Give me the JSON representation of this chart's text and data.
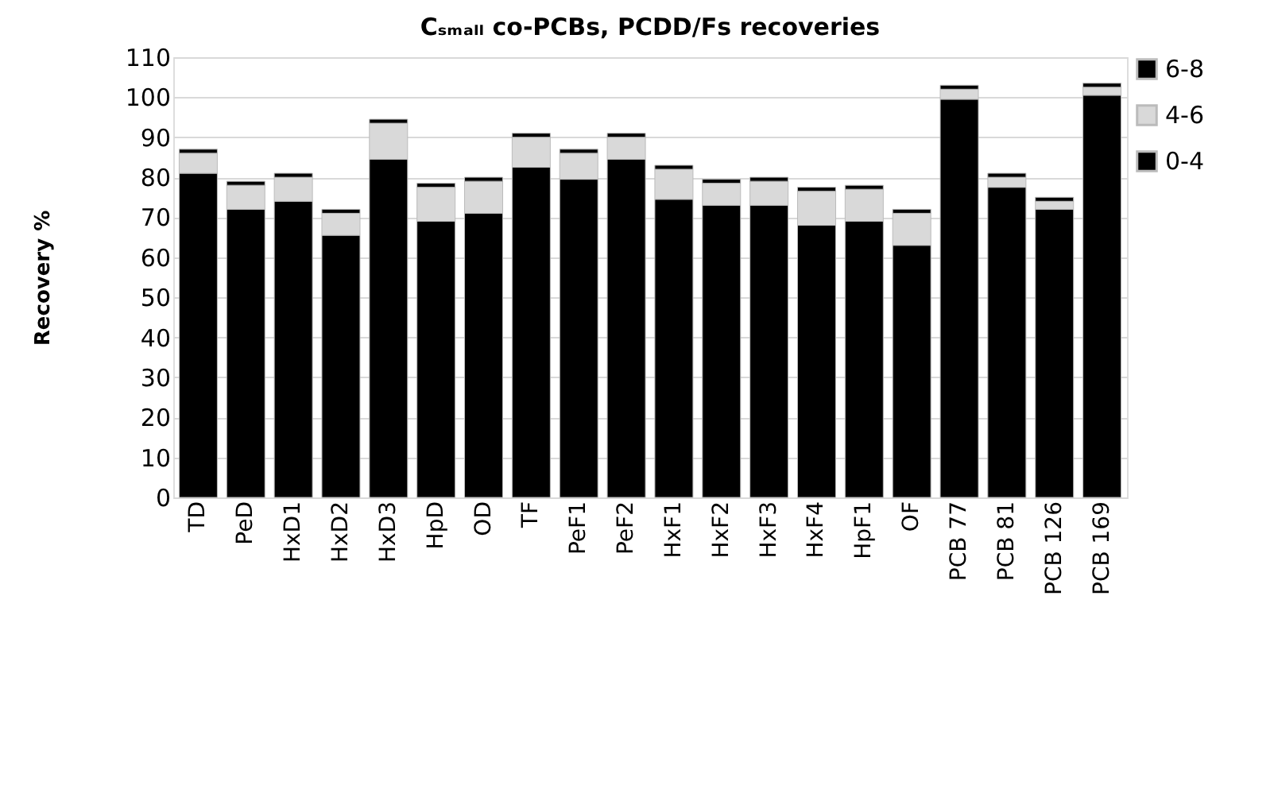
{
  "chart_data": {
    "type": "bar",
    "stacked": true,
    "title": "Cₛₘₐₗₗ co-PCBs, PCDD/Fs recoveries",
    "ylabel": "Recovery %",
    "categories": [
      "TD",
      "PeD",
      "HxD1",
      "HxD2",
      "HxD3",
      "HpD",
      "OD",
      "TF",
      "PeF1",
      "PeF2",
      "HxF1",
      "HxF2",
      "HxF3",
      "HxF4",
      "HpF1",
      "OF",
      "PCB 77",
      "PCB 81",
      "PCB 126",
      "PCB 169"
    ],
    "series": [
      {
        "name": "0-4",
        "color": "#000000",
        "values": [
          81,
          72,
          74,
          65.5,
          84.5,
          69,
          71,
          82.5,
          79.5,
          84.5,
          74.5,
          73,
          73,
          68,
          69,
          63,
          99.5,
          77.5,
          72,
          100.5
        ]
      },
      {
        "name": "4-6",
        "color": "#d9d9d9",
        "values": [
          5,
          6,
          6,
          5.5,
          9,
          8.5,
          8,
          7.5,
          6.5,
          5.5,
          7.5,
          5.5,
          6,
          8.5,
          8,
          8,
          2.5,
          2.5,
          2,
          2
        ]
      },
      {
        "name": "6-8",
        "color": "#000000",
        "values": [
          1,
          1,
          1,
          1,
          1,
          1,
          1,
          1,
          1,
          1,
          1,
          1,
          1,
          1,
          1,
          1,
          1,
          1,
          1,
          1
        ]
      }
    ],
    "ylim": [
      0,
      110
    ],
    "yticks": [
      0,
      10,
      20,
      30,
      40,
      50,
      60,
      70,
      80,
      90,
      100,
      110
    ],
    "grid": "y",
    "legend": "top right"
  }
}
